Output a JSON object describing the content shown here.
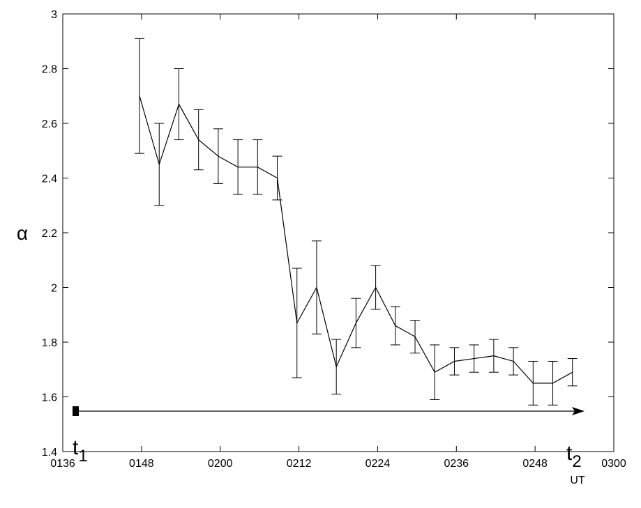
{
  "chart_data": {
    "type": "errorline",
    "x": [
      107.7,
      110.7,
      113.7,
      116.7,
      119.7,
      122.7,
      125.7,
      128.7,
      131.7,
      134.7,
      137.7,
      140.7,
      143.7,
      146.7,
      149.7,
      152.7,
      155.7,
      158.7,
      161.7,
      164.7,
      167.7,
      170.7,
      173.7
    ],
    "values": [
      2.7,
      2.45,
      2.67,
      2.54,
      2.48,
      2.44,
      2.44,
      2.4,
      1.87,
      2.0,
      1.71,
      1.87,
      2.0,
      1.86,
      1.82,
      1.69,
      1.73,
      1.74,
      1.75,
      1.73,
      1.65,
      1.65,
      1.69
    ],
    "errors": [
      0.21,
      0.15,
      0.13,
      0.11,
      0.1,
      0.1,
      0.1,
      0.08,
      0.2,
      0.17,
      0.1,
      0.09,
      0.08,
      0.07,
      0.06,
      0.1,
      0.05,
      0.05,
      0.06,
      0.05,
      0.08,
      0.08,
      0.05
    ],
    "color": "#000000",
    "xlim": [
      96,
      180
    ],
    "xticks": [
      {
        "value": 96,
        "label": "0136"
      },
      {
        "value": 108,
        "label": "0148"
      },
      {
        "value": 120,
        "label": "0200"
      },
      {
        "value": 132,
        "label": "0212"
      },
      {
        "value": 144,
        "label": "0224"
      },
      {
        "value": 156,
        "label": "0236"
      },
      {
        "value": 168,
        "label": "0248"
      },
      {
        "value": 180,
        "label": "0300"
      }
    ],
    "ylim": [
      1.4,
      3
    ],
    "yticks": [
      1.4,
      1.6,
      1.8,
      2,
      2.2,
      2.4,
      2.6,
      2.8,
      3
    ],
    "xlabel": "UT",
    "ylabel": "α",
    "annotations": {
      "start": {
        "base": "t",
        "sub": "1"
      },
      "end": {
        "base": "t",
        "sub": "2"
      }
    }
  }
}
